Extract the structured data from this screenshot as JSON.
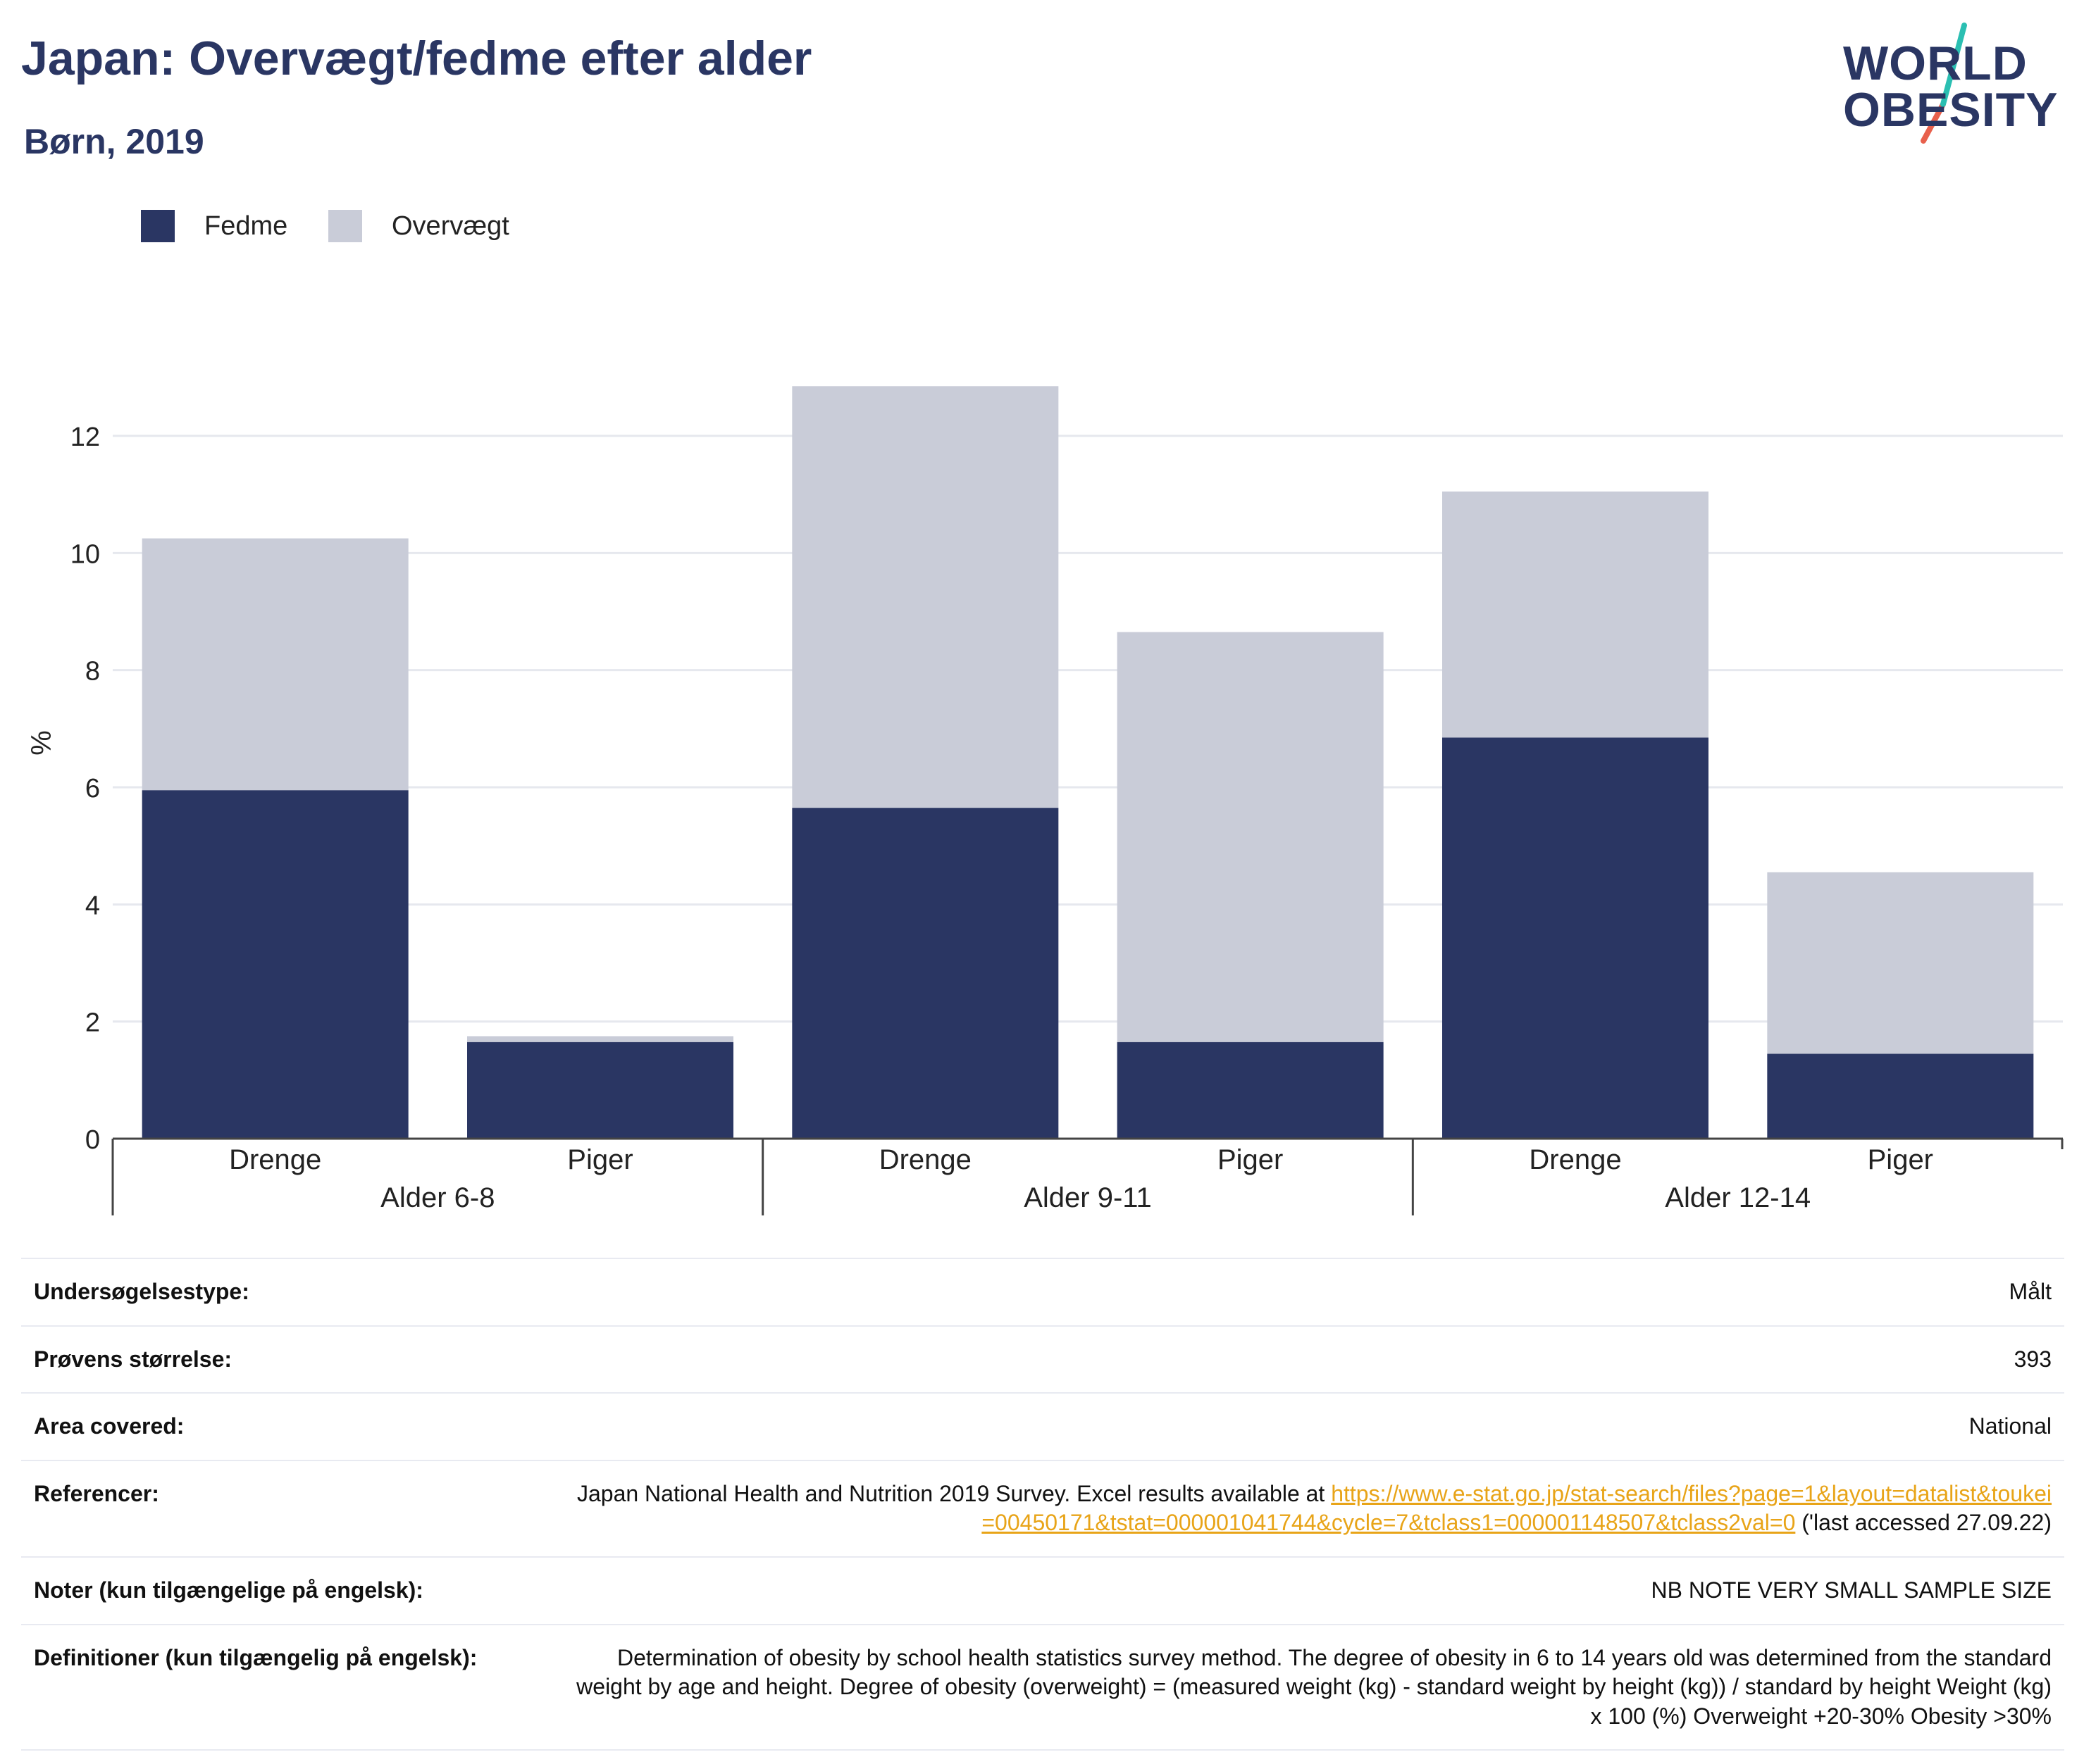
{
  "header": {
    "title": "Japan: Overvægt/fedme efter alder",
    "subtitle": "Børn, 2019"
  },
  "logo": {
    "line1": "WORLD",
    "line2": "OBESITY",
    "colors": {
      "text": "#2a3663",
      "slash_top": "#2bbfb2",
      "slash_bottom": "#e8604c"
    }
  },
  "chart_data": {
    "type": "bar",
    "stacked": true,
    "title": "",
    "xlabel": "",
    "ylabel": "%",
    "ylim": [
      0,
      13.5
    ],
    "yticks": [
      0,
      2,
      4,
      6,
      8,
      10,
      12
    ],
    "grid": true,
    "legend_position": "top-left",
    "groups": [
      {
        "label": "Alder 6-8",
        "categories": [
          "Drenge",
          "Piger"
        ]
      },
      {
        "label": "Alder 9-11",
        "categories": [
          "Drenge",
          "Piger"
        ]
      },
      {
        "label": "Alder 12-14",
        "categories": [
          "Drenge",
          "Piger"
        ]
      }
    ],
    "series": [
      {
        "name": "Fedme",
        "color": "#2a3663",
        "values": [
          5.95,
          1.65,
          5.65,
          1.65,
          6.85,
          1.45
        ]
      },
      {
        "name": "Overvægt",
        "color": "#c9ccd8",
        "values": [
          4.3,
          0.1,
          7.2,
          7.0,
          4.2,
          3.1
        ]
      }
    ]
  },
  "info": [
    {
      "label": "Undersøgelsestype:",
      "value": "Målt"
    },
    {
      "label": "Prøvens størrelse:",
      "value": "393"
    },
    {
      "label": "Area covered:",
      "value": "National"
    },
    {
      "label": "Referencer:",
      "value_pre": "Japan National Health and Nutrition 2019 Survey. Excel results available at ",
      "link": "https://www.e-stat.go.jp/stat-search/files?page=1&layout=datalist&toukei=00450171&tstat=000001041744&cycle=7&tclass1=000001148507&tclass2val=0",
      "value_post": " ('last accessed 27.09.22)"
    },
    {
      "label": "Noter (kun tilgængelige på engelsk):",
      "value": "NB NOTE VERY SMALL SAMPLE SIZE"
    },
    {
      "label": "Definitioner (kun tilgængelig på engelsk):",
      "value": "Determination of obesity by school health statistics survey method. The degree of obesity in 6 to 14 years old was determined from the standard weight by age and height. Degree of obesity (overweight) = (measured weight (kg) - standard weight by height (kg)) / standard by height Weight (kg) x 100 (%) Overweight +20-30% Obesity >30%"
    }
  ]
}
